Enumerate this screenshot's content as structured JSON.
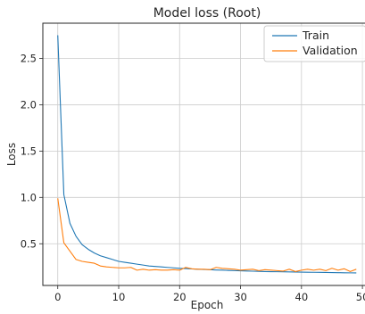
{
  "chart_data": {
    "type": "line",
    "title": "Model loss (Root)",
    "xlabel": "Epoch",
    "ylabel": "Loss",
    "xlim": [
      -2.45,
      51.45
    ],
    "ylim": [
      0.05,
      2.88
    ],
    "xticks": [
      0,
      10,
      20,
      30,
      40,
      50
    ],
    "yticks": [
      0.5,
      1.0,
      1.5,
      2.0,
      2.5
    ],
    "grid": true,
    "legend_position": "top-right",
    "x": [
      0,
      1,
      2,
      3,
      4,
      5,
      6,
      7,
      8,
      9,
      10,
      11,
      12,
      13,
      14,
      15,
      16,
      17,
      18,
      19,
      20,
      21,
      22,
      23,
      24,
      25,
      26,
      27,
      28,
      29,
      30,
      31,
      32,
      33,
      34,
      35,
      36,
      37,
      38,
      39,
      40,
      41,
      42,
      43,
      44,
      45,
      46,
      47,
      48,
      49
    ],
    "series": [
      {
        "name": "Train",
        "color": "#1f77b4",
        "values": [
          2.75,
          1.03,
          0.72,
          0.58,
          0.49,
          0.44,
          0.4,
          0.37,
          0.35,
          0.33,
          0.31,
          0.3,
          0.29,
          0.28,
          0.27,
          0.26,
          0.255,
          0.25,
          0.245,
          0.24,
          0.235,
          0.232,
          0.228,
          0.225,
          0.222,
          0.22,
          0.217,
          0.215,
          0.212,
          0.21,
          0.208,
          0.206,
          0.204,
          0.202,
          0.2,
          0.199,
          0.198,
          0.197,
          0.196,
          0.195,
          0.194,
          0.193,
          0.192,
          0.191,
          0.19,
          0.189,
          0.188,
          0.187,
          0.186,
          0.185
        ]
      },
      {
        "name": "Validation",
        "color": "#ff7f0e",
        "values": [
          0.99,
          0.51,
          0.42,
          0.33,
          0.31,
          0.3,
          0.29,
          0.26,
          0.25,
          0.245,
          0.24,
          0.24,
          0.245,
          0.215,
          0.225,
          0.215,
          0.22,
          0.215,
          0.215,
          0.22,
          0.215,
          0.245,
          0.23,
          0.225,
          0.225,
          0.22,
          0.245,
          0.235,
          0.23,
          0.225,
          0.215,
          0.22,
          0.225,
          0.21,
          0.22,
          0.215,
          0.21,
          0.205,
          0.225,
          0.2,
          0.215,
          0.225,
          0.215,
          0.225,
          0.21,
          0.235,
          0.215,
          0.23,
          0.2,
          0.225
        ]
      }
    ]
  }
}
